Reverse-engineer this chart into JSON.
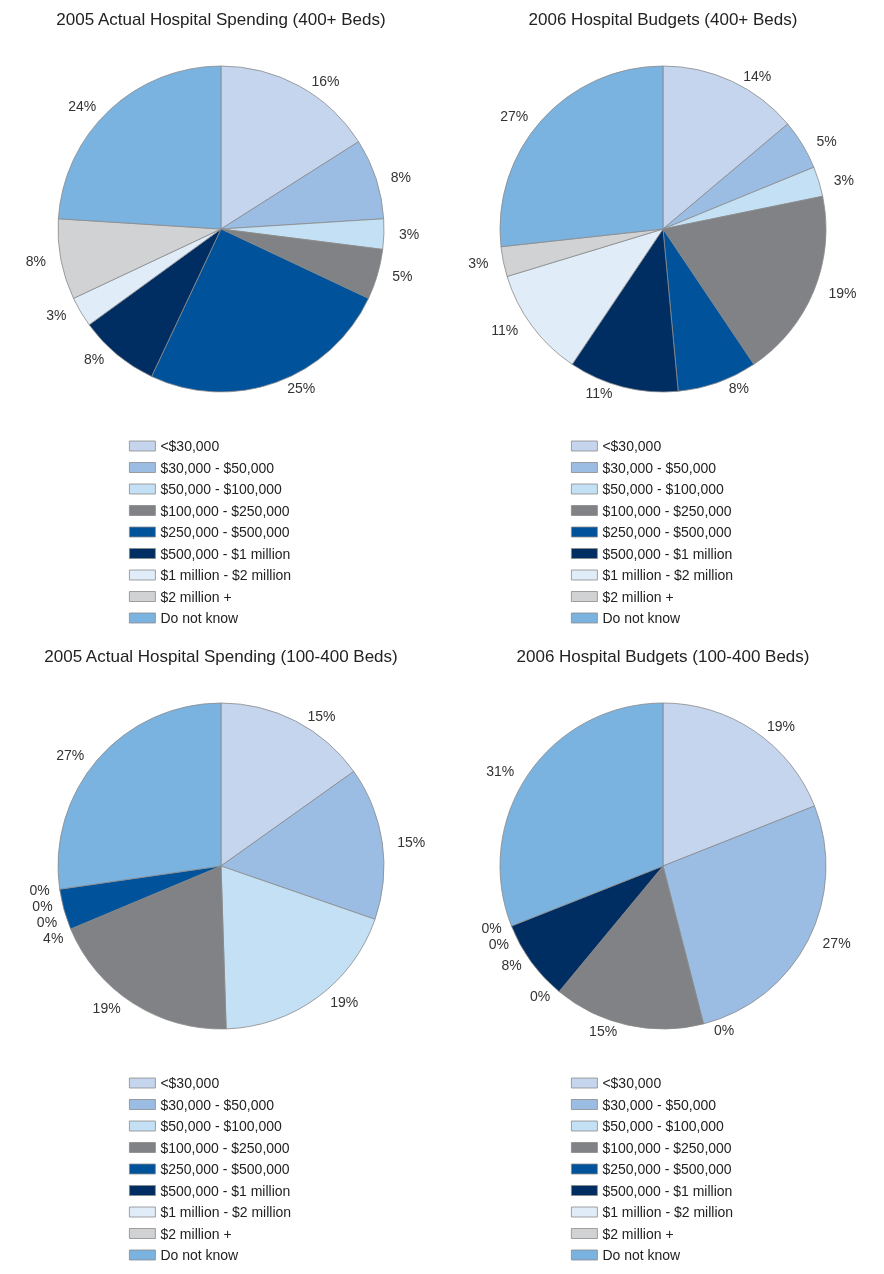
{
  "chart_data": [
    {
      "type": "pie",
      "title": "2005 Actual Hospital Spending (400+ Beds)",
      "categories": [
        "<$30,000",
        "$30,000 - $50,000",
        "$50,000 - $100,000",
        "$100,000 - $250,000",
        "$250,000 - $500,000",
        "$500,000 - $1 million",
        "$1 million - $2 million",
        "$2 million +",
        "Do not know"
      ],
      "values": [
        16,
        8,
        3,
        5,
        25,
        8,
        3,
        8,
        24
      ],
      "value_labels": [
        "16%",
        "8%",
        "3%",
        "5%",
        "25%",
        "8%",
        "3%",
        "8%",
        "24%"
      ],
      "colors": [
        "#c5d5ee",
        "#9bbde4",
        "#c3e0f5",
        "#808285",
        "#00529b",
        "#002d62",
        "#e0ecf8",
        "#d1d2d4",
        "#7ab2e0"
      ],
      "legend": "bottom"
    },
    {
      "type": "pie",
      "title": "2006 Hospital Budgets (400+ Beds)",
      "categories": [
        "<$30,000",
        "$30,000 - $50,000",
        "$50,000 - $100,000",
        "$100,000 - $250,000",
        "$250,000 - $500,000",
        "$500,000 - $1 million",
        "$1 million - $2 million",
        "$2 million +",
        "Do not know"
      ],
      "values": [
        14,
        5,
        3,
        19,
        8,
        11,
        11,
        3,
        27
      ],
      "value_labels": [
        "14%",
        "5%",
        "3%",
        "19%",
        "8%",
        "11%",
        "11%",
        "3%",
        "27%"
      ],
      "colors": [
        "#c5d5ee",
        "#9bbde4",
        "#c3e0f5",
        "#808285",
        "#00529b",
        "#002d62",
        "#e0ecf8",
        "#d1d2d4",
        "#7ab2e0"
      ],
      "legend": "bottom"
    },
    {
      "type": "pie",
      "title": "2005 Actual Hospital Spending (100-400 Beds)",
      "categories": [
        "<$30,000",
        "$30,000 - $50,000",
        "$50,000 - $100,000",
        "$100,000 - $250,000",
        "$250,000 - $500,000",
        "$500,000 - $1 million",
        "$1 million - $2 million",
        "$2 million +",
        "Do not know"
      ],
      "values": [
        15,
        15,
        19,
        19,
        4,
        0,
        0,
        0,
        27
      ],
      "value_labels": [
        "15%",
        "15%",
        "19%",
        "19%",
        "4%",
        "0%",
        "0%",
        "0%",
        "27%"
      ],
      "colors": [
        "#c5d5ee",
        "#9bbde4",
        "#c3e0f5",
        "#808285",
        "#00529b",
        "#002d62",
        "#e0ecf8",
        "#d1d2d4",
        "#7ab2e0"
      ],
      "legend": "bottom"
    },
    {
      "type": "pie",
      "title": "2006 Hospital Budgets (100-400 Beds)",
      "categories": [
        "<$30,000",
        "$30,000 - $50,000",
        "$50,000 - $100,000",
        "$100,000 - $250,000",
        "$250,000 - $500,000",
        "$500,000 - $1 million",
        "$1 million - $2 million",
        "$2 million +",
        "Do not know"
      ],
      "values": [
        19,
        27,
        0,
        15,
        0,
        8,
        0,
        0,
        31
      ],
      "value_labels": [
        "19%",
        "27%",
        "0%",
        "15%",
        "0%",
        "8%",
        "0%",
        "0%",
        "31%"
      ],
      "colors": [
        "#c5d5ee",
        "#9bbde4",
        "#c3e0f5",
        "#808285",
        "#00529b",
        "#002d62",
        "#e0ecf8",
        "#d1d2d4",
        "#7ab2e0"
      ],
      "legend": "bottom"
    }
  ]
}
